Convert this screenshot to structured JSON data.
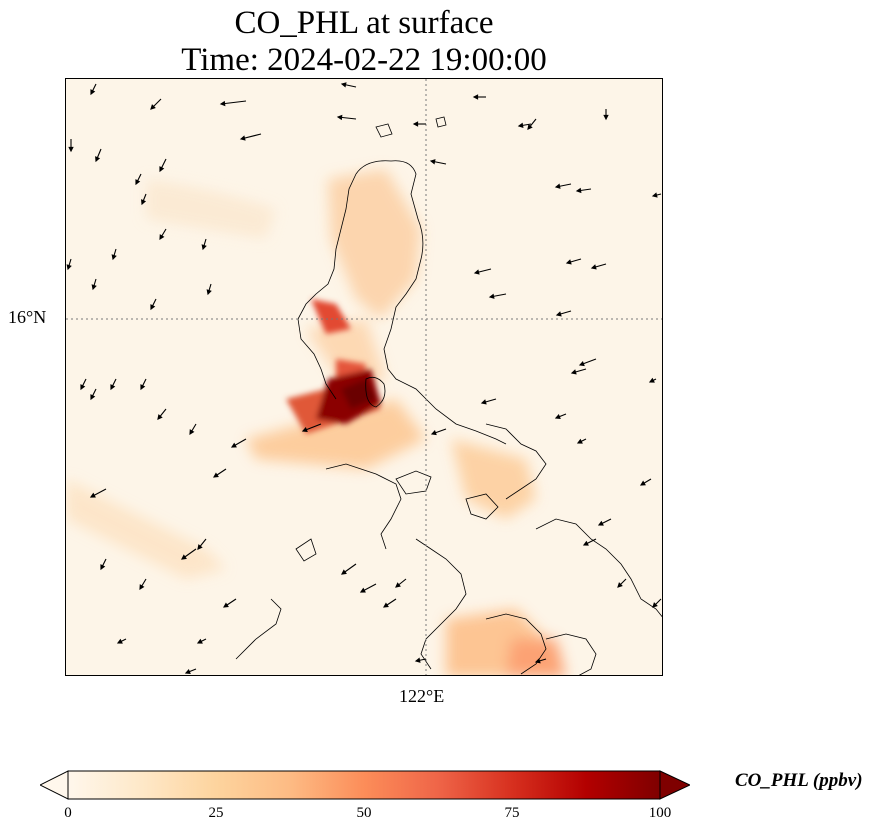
{
  "title": {
    "line1": "CO_PHL at surface",
    "line2": "Time: 2024-02-22 19:00:00"
  },
  "axes": {
    "lat_label": "16°N",
    "lon_label": "122°E",
    "gridlines": "dotted"
  },
  "colorbar": {
    "label": "CO_PHL (ppbv)",
    "ticks": [
      "0",
      "25",
      "50",
      "75",
      "100"
    ],
    "tick_values": [
      0,
      25,
      50,
      75,
      100
    ],
    "range": [
      0,
      100
    ],
    "extend": "both",
    "colormap": "OrRd",
    "colors": [
      "#fff7ec",
      "#fee8c8",
      "#fdd49e",
      "#fdbb84",
      "#fc8d59",
      "#ef6548",
      "#d7301f",
      "#b30000",
      "#7f0000"
    ]
  },
  "chart_data": {
    "type": "heatmap",
    "variable": "CO_PHL",
    "unit": "ppbv",
    "level": "surface",
    "time": "2024-02-22 19:00:00",
    "overlays": [
      "coastlines",
      "wind-vectors"
    ]
  }
}
